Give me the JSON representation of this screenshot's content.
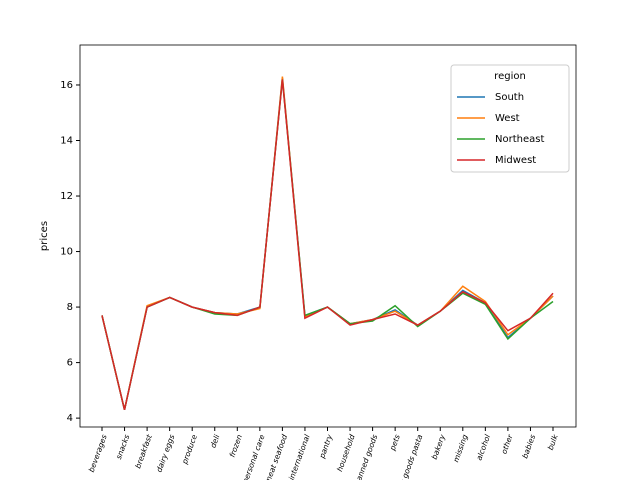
{
  "chart_data": {
    "type": "line",
    "ylabel": "prices",
    "legend_title": "region",
    "legend_position": "upper right",
    "categories": [
      "beverages",
      "snacks",
      "breakfast",
      "dairy eggs",
      "produce",
      "deli",
      "frozen",
      "personal care",
      "meat seafood",
      "international",
      "pantry",
      "household",
      "canned goods",
      "pets",
      "dry goods pasta",
      "bakery",
      "missing",
      "alcohol",
      "other",
      "babies",
      "bulk"
    ],
    "ylim": [
      3.68,
      17.44
    ],
    "yticks": [
      4,
      6,
      8,
      10,
      12,
      14,
      16
    ],
    "series": [
      {
        "name": "South",
        "color": "#1f77b4",
        "values": [
          7.7,
          4.3,
          8.0,
          8.35,
          8.0,
          7.8,
          7.75,
          8.0,
          16.25,
          7.7,
          8.0,
          7.4,
          7.55,
          7.9,
          7.35,
          7.85,
          8.6,
          8.15,
          6.9,
          7.6,
          8.4
        ]
      },
      {
        "name": "West",
        "color": "#ff7f0e",
        "values": [
          7.7,
          4.3,
          8.05,
          8.35,
          8.0,
          7.8,
          7.75,
          7.95,
          16.3,
          7.65,
          8.0,
          7.4,
          7.55,
          7.85,
          7.35,
          7.85,
          8.75,
          8.2,
          7.0,
          7.6,
          8.4
        ]
      },
      {
        "name": "Northeast",
        "color": "#2ca02c",
        "values": [
          7.7,
          4.3,
          8.0,
          8.35,
          8.0,
          7.75,
          7.7,
          8.0,
          16.2,
          7.7,
          8.0,
          7.4,
          7.5,
          8.05,
          7.3,
          7.85,
          8.5,
          8.1,
          6.85,
          7.6,
          8.2
        ]
      },
      {
        "name": "Midwest",
        "color": "#d62728",
        "values": [
          7.7,
          4.3,
          8.0,
          8.35,
          8.0,
          7.8,
          7.7,
          8.0,
          16.2,
          7.6,
          8.0,
          7.35,
          7.55,
          7.75,
          7.35,
          7.85,
          8.55,
          8.15,
          7.15,
          7.6,
          8.5
        ]
      }
    ]
  }
}
